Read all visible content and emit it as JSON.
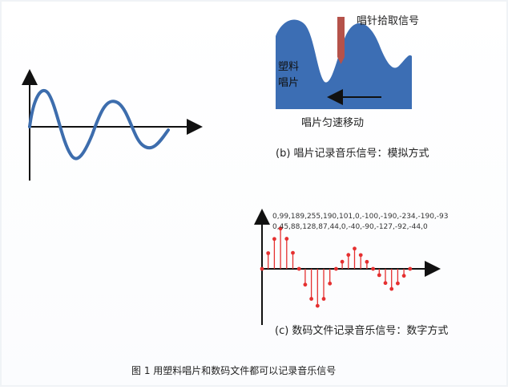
{
  "groove": {
    "needle_label": "唱针拾取信号",
    "plastic_label_line1": "塑料",
    "plastic_label_line2": "唱片",
    "motion_label": "唱片匀速移动"
  },
  "analog": {
    "caption": "(b)  唱片记录音乐信号：模拟方式"
  },
  "digital": {
    "values_line1": "0,99,189,255,190,101,0,-100,-190,-234,-190,-93",
    "values_line2": "0,45,88,128,87,44,0,-40,-90,-127,-92,-44,0",
    "caption": "(c)  数码文件记录音乐信号：数字方式"
  },
  "figure_caption": "图 1  用塑料唱片和数码文件都可以记录音乐信号",
  "colors": {
    "groove_fill": "#3c6eb4",
    "needle": "#b5524a",
    "stem": "#e53030",
    "axis": "#111111",
    "wave": "#3d6dad"
  }
}
